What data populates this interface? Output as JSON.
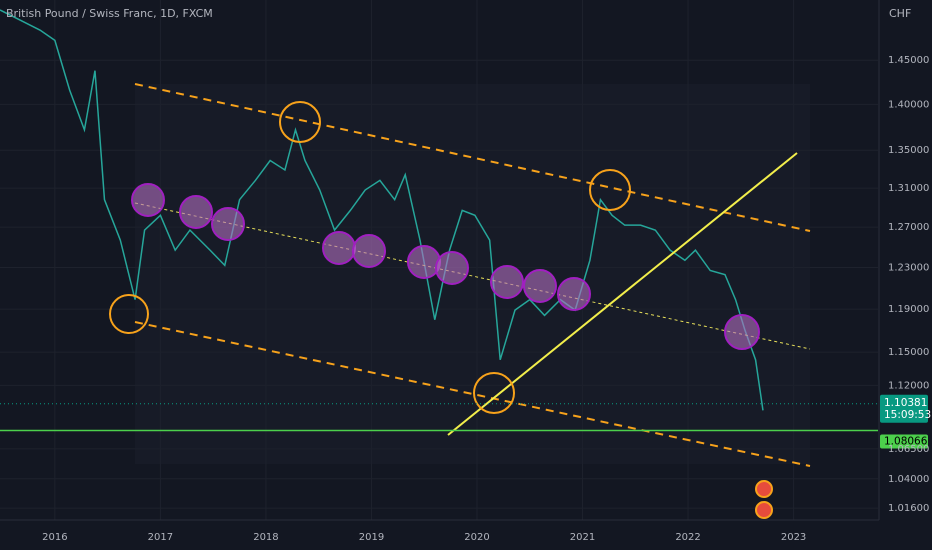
{
  "chart_data": {
    "type": "line",
    "title": "British Pound / Swiss Franc, 1D, FXCM",
    "currency": "CHF",
    "log": true,
    "grid": true,
    "color": "#26a69a",
    "xlim": [
      2015.48,
      2023.8
    ],
    "ylim": [
      1.0065,
      1.521
    ],
    "xticks": [
      2016,
      2017,
      2018,
      2019,
      2020,
      2021,
      2022,
      2023
    ],
    "yticks": [
      {
        "value": 1.45,
        "label": "1.45000"
      },
      {
        "value": 1.4,
        "label": "1.40000"
      },
      {
        "value": 1.35,
        "label": "1.35000"
      },
      {
        "value": 1.31,
        "label": "1.31000"
      },
      {
        "value": 1.27,
        "label": "1.27000"
      },
      {
        "value": 1.23,
        "label": "1.23000"
      },
      {
        "value": 1.19,
        "label": "1.19000"
      },
      {
        "value": 1.15,
        "label": "1.15000"
      },
      {
        "value": 1.12,
        "label": "1.12000"
      },
      {
        "value": 1.065,
        "label": "1.06500"
      },
      {
        "value": 1.04,
        "label": "1.04000"
      },
      {
        "value": 1.016,
        "label": "1.01600"
      }
    ],
    "x": [
      2015.48,
      2015.67,
      2015.86,
      2016.0,
      2016.14,
      2016.28,
      2016.38,
      2016.47,
      2016.62,
      2016.76,
      2016.85,
      2017.0,
      2017.14,
      2017.28,
      2017.47,
      2017.61,
      2017.75,
      2017.9,
      2018.04,
      2018.18,
      2018.28,
      2018.37,
      2018.51,
      2018.65,
      2018.8,
      2018.94,
      2019.08,
      2019.22,
      2019.32,
      2019.46,
      2019.6,
      2019.74,
      2019.86,
      2019.98,
      2020.12,
      2020.22,
      2020.36,
      2020.5,
      2020.64,
      2020.79,
      2020.93,
      2021.07,
      2021.17,
      2021.28,
      2021.4,
      2021.55,
      2021.69,
      2021.83,
      2021.97,
      2022.07,
      2022.21,
      2022.35,
      2022.45,
      2022.54,
      2022.64,
      2022.71
    ],
    "values": [
      1.509,
      1.497,
      1.485,
      1.473,
      1.416,
      1.372,
      1.438,
      1.298,
      1.257,
      1.199,
      1.267,
      1.282,
      1.247,
      1.267,
      1.247,
      1.232,
      1.298,
      1.318,
      1.339,
      1.329,
      1.372,
      1.339,
      1.308,
      1.267,
      1.287,
      1.308,
      1.318,
      1.298,
      1.324,
      1.257,
      1.18,
      1.247,
      1.287,
      1.282,
      1.257,
      1.143,
      1.189,
      1.199,
      1.184,
      1.199,
      1.189,
      1.237,
      1.298,
      1.282,
      1.272,
      1.272,
      1.267,
      1.247,
      1.237,
      1.247,
      1.227,
      1.223,
      1.199,
      1.17,
      1.143,
      1.098
    ],
    "last_price": 1.10381,
    "countdown": "15:09:53",
    "level": 1.08066
  }
}
